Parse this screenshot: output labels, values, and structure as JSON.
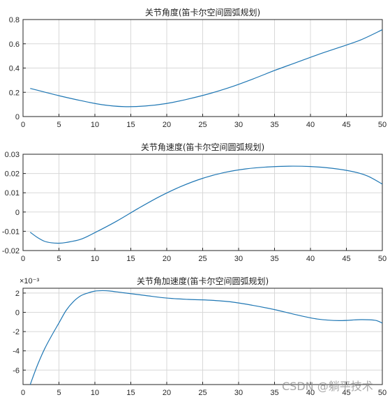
{
  "figure": {
    "watermark": "CSDN @躺平技术",
    "line_color": "#1f77b4"
  },
  "chart_data": [
    {
      "type": "line",
      "title": "关节角度(笛卡尔空间圆弧规划)",
      "xlim": [
        0,
        50
      ],
      "ylim": [
        0,
        0.8
      ],
      "xticks": [
        0,
        5,
        10,
        15,
        20,
        25,
        30,
        35,
        40,
        45,
        50
      ],
      "yticks": [
        0,
        0.2,
        0.4,
        0.6,
        0.8
      ],
      "xtick_labels": [
        "0",
        "5",
        "10",
        "15",
        "20",
        "25",
        "30",
        "35",
        "40",
        "45",
        "50"
      ],
      "ytick_labels": [
        "0",
        "0.2",
        "0.4",
        "0.6",
        "0.8"
      ],
      "grid": true,
      "exponent_label": "",
      "series": [
        {
          "name": "",
          "points": [
            [
              1,
              0.232
            ],
            [
              3,
              0.202
            ],
            [
              5,
              0.172
            ],
            [
              8,
              0.132
            ],
            [
              11,
              0.098
            ],
            [
              14,
              0.082
            ],
            [
              17,
              0.087
            ],
            [
              20,
              0.108
            ],
            [
              23,
              0.145
            ],
            [
              26,
              0.19
            ],
            [
              29,
              0.245
            ],
            [
              32,
              0.31
            ],
            [
              35,
              0.38
            ],
            [
              38,
              0.445
            ],
            [
              41,
              0.51
            ],
            [
              44,
              0.57
            ],
            [
              47,
              0.632
            ],
            [
              50,
              0.716
            ]
          ]
        }
      ]
    },
    {
      "type": "line",
      "title": "关节角速度(笛卡尔空间圆弧规划)",
      "xlim": [
        0,
        50
      ],
      "ylim": [
        -0.02,
        0.03
      ],
      "xticks": [
        0,
        5,
        10,
        15,
        20,
        25,
        30,
        35,
        40,
        45,
        50
      ],
      "yticks": [
        -0.02,
        -0.01,
        0,
        0.01,
        0.02,
        0.03
      ],
      "xtick_labels": [
        "0",
        "5",
        "10",
        "15",
        "20",
        "25",
        "30",
        "35",
        "40",
        "45",
        "50"
      ],
      "ytick_labels": [
        "-0.02",
        "-0.01",
        "0",
        "0.01",
        "0.02",
        "0.03"
      ],
      "grid": true,
      "exponent_label": "",
      "series": [
        {
          "name": "",
          "points": [
            [
              1,
              -0.0105
            ],
            [
              2,
              -0.0132
            ],
            [
              3,
              -0.0152
            ],
            [
              4,
              -0.016
            ],
            [
              5,
              -0.0162
            ],
            [
              6,
              -0.0158
            ],
            [
              8,
              -0.0142
            ],
            [
              10,
              -0.0107
            ],
            [
              13,
              -0.0048
            ],
            [
              16,
              0.0018
            ],
            [
              19,
              0.008
            ],
            [
              22,
              0.0133
            ],
            [
              25,
              0.0175
            ],
            [
              28,
              0.0205
            ],
            [
              31,
              0.0224
            ],
            [
              34,
              0.0234
            ],
            [
              37,
              0.0238
            ],
            [
              40,
              0.0236
            ],
            [
              43,
              0.0227
            ],
            [
              46,
              0.0209
            ],
            [
              48,
              0.0186
            ],
            [
              50,
              0.0145
            ]
          ]
        }
      ]
    },
    {
      "type": "line",
      "title": "关节角加速度(笛卡尔空间圆弧规划)",
      "xlim": [
        0,
        50
      ],
      "ylim": [
        -7.5,
        2.5
      ],
      "xticks": [
        0,
        5,
        10,
        15,
        20,
        25,
        30,
        35,
        40,
        45,
        50
      ],
      "yticks": [
        -6,
        -4,
        -2,
        0,
        2
      ],
      "xtick_labels": [
        "0",
        "5",
        "10",
        "15",
        "20",
        "25",
        "30",
        "35",
        "40",
        "45",
        "50"
      ],
      "ytick_labels": [
        "-6",
        "-4",
        "-2",
        "0",
        "2"
      ],
      "grid": true,
      "exponent_label": "×10⁻³",
      "series": [
        {
          "name": "",
          "points": [
            [
              1,
              -7.5
            ],
            [
              2,
              -5.5
            ],
            [
              3,
              -3.8
            ],
            [
              4,
              -2.4
            ],
            [
              5,
              -1.1
            ],
            [
              6,
              0.2
            ],
            [
              7,
              1.1
            ],
            [
              8,
              1.7
            ],
            [
              9,
              2.0
            ],
            [
              10,
              2.2
            ],
            [
              11,
              2.25
            ],
            [
              12,
              2.22
            ],
            [
              14,
              2.03
            ],
            [
              17,
              1.75
            ],
            [
              20,
              1.48
            ],
            [
              23,
              1.34
            ],
            [
              26,
              1.26
            ],
            [
              29,
              1.08
            ],
            [
              32,
              0.72
            ],
            [
              35,
              0.28
            ],
            [
              38,
              -0.25
            ],
            [
              41,
              -0.7
            ],
            [
              44,
              -0.86
            ],
            [
              47,
              -0.76
            ],
            [
              49,
              -0.83
            ],
            [
              50,
              -1.12
            ]
          ]
        }
      ]
    }
  ]
}
